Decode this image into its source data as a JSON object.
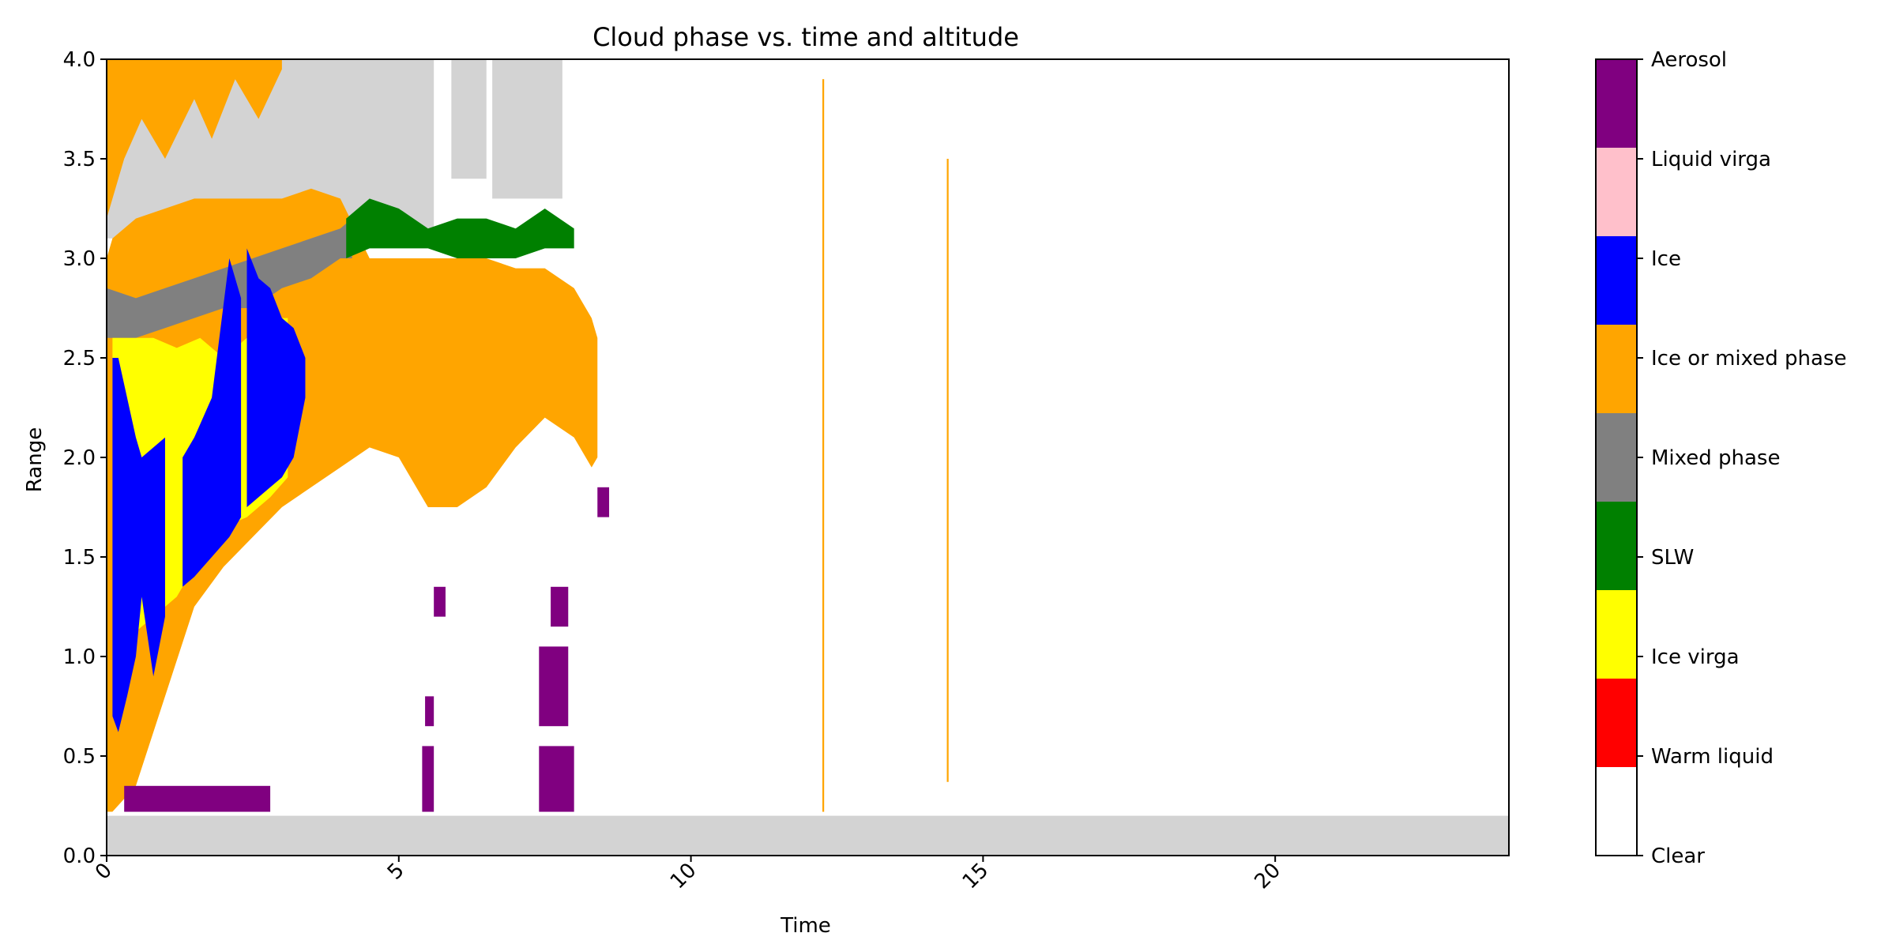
{
  "chart_data": {
    "type": "heatmap",
    "title": "Cloud phase vs. time and altitude",
    "xlabel": "Time",
    "ylabel": "Range",
    "xlim": [
      0,
      24
    ],
    "ylim": [
      0,
      4
    ],
    "x_ticks": [
      0,
      5,
      10,
      15,
      20
    ],
    "y_ticks": [
      0.0,
      0.5,
      1.0,
      1.5,
      2.0,
      2.5,
      3.0,
      3.5,
      4.0
    ],
    "grid": false,
    "categories": [
      {
        "label": "Clear",
        "color": "#ffffff"
      },
      {
        "label": "Warm liquid",
        "color": "#ff0000"
      },
      {
        "label": "Ice virga",
        "color": "#ffff00"
      },
      {
        "label": "SLW",
        "color": "#008000"
      },
      {
        "label": "Mixed phase",
        "color": "#808080"
      },
      {
        "label": "Ice or mixed phase",
        "color": "#ffa500"
      },
      {
        "label": "Ice",
        "color": "#0000ff"
      },
      {
        "label": "Liquid virga",
        "color": "#ffc0cb"
      },
      {
        "label": "Aerosol",
        "color": "#800080"
      }
    ],
    "extra_colors": {
      "no_data": "#d3d3d3"
    },
    "regions": [
      {
        "category": "no_data",
        "kind": "band",
        "t0": 0,
        "t1": 24,
        "y0": 0,
        "y1": 0.2
      },
      {
        "category": "no_data",
        "kind": "rect",
        "t0": 0,
        "t1": 5.6,
        "y0": 3.1,
        "y1": 4.0
      },
      {
        "category": "no_data",
        "kind": "rect",
        "t0": 5.9,
        "t1": 6.5,
        "y0": 3.4,
        "y1": 4.0
      },
      {
        "category": "no_data",
        "kind": "rect",
        "t0": 6.6,
        "t1": 7.8,
        "y0": 3.3,
        "y1": 4.0
      },
      {
        "category": "Ice or mixed phase",
        "kind": "profile",
        "t": [
          0,
          0.1,
          0.5,
          1.0,
          1.5,
          2.0,
          2.5,
          3.0,
          3.5,
          4.0,
          4.5,
          5.0,
          5.5,
          6.0,
          6.5,
          7.0,
          7.5,
          8.0,
          8.3,
          8.4
        ],
        "top": [
          3.0,
          3.1,
          3.2,
          3.25,
          3.3,
          3.3,
          3.3,
          3.3,
          3.35,
          3.3,
          3.0,
          3.0,
          3.0,
          3.0,
          3.0,
          2.95,
          2.95,
          2.85,
          2.7,
          2.6
        ],
        "bottom": [
          0.22,
          0.22,
          0.35,
          0.8,
          1.25,
          1.45,
          1.6,
          1.75,
          1.85,
          1.95,
          2.05,
          2.0,
          1.75,
          1.75,
          1.85,
          2.05,
          2.2,
          2.1,
          1.95,
          2.0
        ]
      },
      {
        "category": "Ice or mixed phase",
        "kind": "profile",
        "t": [
          0,
          0.3,
          0.6,
          1.0,
          1.5,
          1.8,
          2.2,
          2.6,
          3.0
        ],
        "top": [
          4.0,
          4.0,
          4.0,
          4.0,
          4.0,
          4.0,
          4.0,
          4.0,
          4.0
        ],
        "bottom": [
          3.2,
          3.5,
          3.7,
          3.5,
          3.8,
          3.6,
          3.9,
          3.7,
          3.95
        ]
      },
      {
        "category": "Mixed phase",
        "kind": "profile",
        "t": [
          0,
          0.5,
          1.0,
          1.5,
          2.0,
          2.5,
          3.0,
          3.5,
          4.0,
          4.2
        ],
        "top": [
          2.85,
          2.8,
          2.85,
          2.9,
          2.95,
          3.0,
          3.05,
          3.1,
          3.15,
          3.2
        ],
        "bottom": [
          2.6,
          2.6,
          2.65,
          2.7,
          2.75,
          2.75,
          2.85,
          2.9,
          3.0,
          3.0
        ]
      },
      {
        "category": "SLW",
        "kind": "profile",
        "t": [
          4.1,
          4.5,
          5.0,
          5.5,
          6.0,
          6.5,
          7.0,
          7.5,
          8.0
        ],
        "top": [
          3.2,
          3.3,
          3.25,
          3.15,
          3.2,
          3.2,
          3.15,
          3.25,
          3.15
        ],
        "bottom": [
          3.0,
          3.05,
          3.05,
          3.05,
          3.0,
          3.0,
          3.0,
          3.05,
          3.05
        ]
      },
      {
        "category": "Ice virga",
        "kind": "profile",
        "t": [
          0.1,
          0.4,
          0.8,
          1.2,
          1.6,
          2.0,
          2.4,
          2.8,
          3.1
        ],
        "top": [
          2.6,
          2.6,
          2.6,
          2.55,
          2.6,
          2.5,
          2.6,
          2.7,
          2.7
        ],
        "bottom": [
          2.2,
          1.1,
          1.2,
          1.3,
          1.5,
          1.65,
          1.7,
          1.8,
          1.9
        ]
      },
      {
        "category": "Ice",
        "kind": "profile",
        "t": [
          0.1,
          0.2,
          0.35,
          0.5,
          0.6,
          0.8,
          1.0
        ],
        "top": [
          2.5,
          2.5,
          2.3,
          2.1,
          2.0,
          2.05,
          2.1
        ],
        "bottom": [
          0.7,
          0.62,
          0.8,
          1.0,
          1.3,
          0.9,
          1.2
        ]
      },
      {
        "category": "Ice",
        "kind": "profile",
        "t": [
          1.3,
          1.5,
          1.8,
          2.1,
          2.3
        ],
        "top": [
          2.0,
          2.1,
          2.3,
          3.0,
          2.8
        ],
        "bottom": [
          1.35,
          1.4,
          1.5,
          1.6,
          1.7
        ]
      },
      {
        "category": "Ice",
        "kind": "profile",
        "t": [
          2.4,
          2.6,
          2.8,
          3.0,
          3.2,
          3.4
        ],
        "top": [
          3.05,
          2.9,
          2.85,
          2.7,
          2.65,
          2.5
        ],
        "bottom": [
          1.75,
          1.8,
          1.85,
          1.9,
          2.0,
          2.3
        ]
      },
      {
        "category": "Aerosol",
        "kind": "rect",
        "t0": 0.3,
        "t1": 2.8,
        "y0": 0.22,
        "y1": 0.35
      },
      {
        "category": "Aerosol",
        "kind": "rect",
        "t0": 5.4,
        "t1": 5.6,
        "y0": 0.22,
        "y1": 0.55
      },
      {
        "category": "Aerosol",
        "kind": "rect",
        "t0": 5.45,
        "t1": 5.6,
        "y0": 0.65,
        "y1": 0.8
      },
      {
        "category": "Aerosol",
        "kind": "rect",
        "t0": 5.6,
        "t1": 5.8,
        "y0": 1.2,
        "y1": 1.35
      },
      {
        "category": "Aerosol",
        "kind": "rect",
        "t0": 7.4,
        "t1": 8.0,
        "y0": 0.22,
        "y1": 0.55
      },
      {
        "category": "Aerosol",
        "kind": "rect",
        "t0": 7.4,
        "t1": 7.9,
        "y0": 0.65,
        "y1": 1.05
      },
      {
        "category": "Aerosol",
        "kind": "rect",
        "t0": 7.6,
        "t1": 7.9,
        "y0": 1.15,
        "y1": 1.35
      },
      {
        "category": "Aerosol",
        "kind": "rect",
        "t0": 8.4,
        "t1": 8.6,
        "y0": 1.7,
        "y1": 1.85
      },
      {
        "category": "Ice or mixed phase",
        "kind": "line",
        "t0": 12.25,
        "t1": 12.28,
        "y0": 0.22,
        "y1": 3.9
      },
      {
        "category": "Ice or mixed phase",
        "kind": "line",
        "t0": 14.38,
        "t1": 14.41,
        "y0": 0.37,
        "y1": 3.5
      }
    ]
  }
}
